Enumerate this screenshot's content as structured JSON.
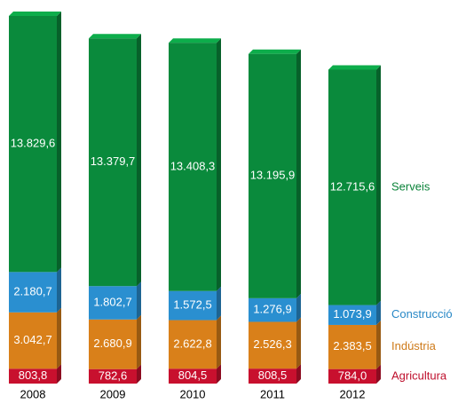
{
  "chart_data": {
    "type": "stacked_bar",
    "categories": [
      "2008",
      "2009",
      "2010",
      "2011",
      "2012"
    ],
    "series": [
      {
        "name": "Agricultura",
        "color": "#c8102e",
        "values": [
          803.8,
          782.6,
          804.5,
          808.5,
          784.0
        ],
        "value_labels": [
          "803,8",
          "782,6",
          "804,5",
          "808,5",
          "784,0"
        ]
      },
      {
        "name": "Indústria",
        "color": "#d9801a",
        "values": [
          3042.7,
          2680.9,
          2622.8,
          2526.3,
          2383.5
        ],
        "value_labels": [
          "3.042,7",
          "2.680,9",
          "2.622,8",
          "2.526,3",
          "2.383,5"
        ]
      },
      {
        "name": "Construcció",
        "color": "#2a8fd0",
        "values": [
          2180.7,
          1802.7,
          1572.5,
          1276.9,
          1073.9
        ],
        "value_labels": [
          "2.180,7",
          "1.802,7",
          "1.572,5",
          "1.276,9",
          "1.073,9"
        ]
      },
      {
        "name": "Serveis",
        "color": "#0a8a3c",
        "values": [
          13829.6,
          13379.7,
          13408.3,
          13195.9,
          12715.6
        ],
        "value_labels": [
          "13.829,6",
          "13.379,7",
          "13.408,3",
          "13.195,9",
          "12.715,6"
        ]
      }
    ]
  }
}
